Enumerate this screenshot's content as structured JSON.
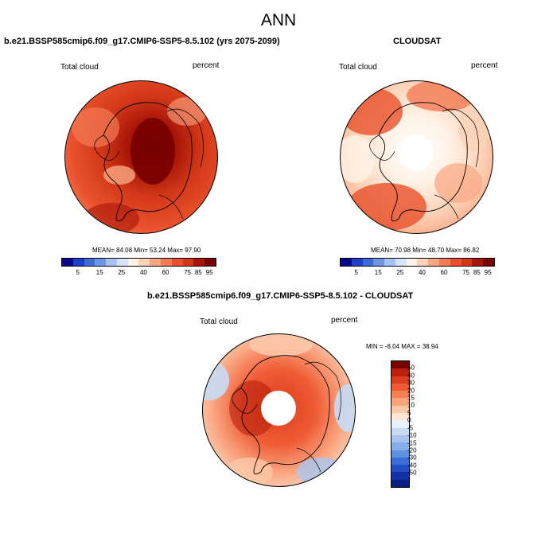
{
  "title": "ANN",
  "panels": [
    {
      "title": "b.e21.BSSP585cmip6.f09_g17.CMIP6-SSP5-8.5.102 (yrs 2075-2099)",
      "left_label": "Total cloud",
      "right_label": "percent",
      "stats": "MEAN=  84.08  Min=  53.24  Max=  97.90"
    },
    {
      "title": "CLOUDSAT",
      "left_label": "Total cloud",
      "right_label": "percent",
      "stats": "MEAN=  70.98  Min=  48.70  Max=  86.82"
    },
    {
      "title": "b.e21.BSSP585cmip6.f09_g17.CMIP6-SSP5-8.5.102 - CLOUDSAT",
      "left_label": "Total cloud",
      "right_label": "percent",
      "stats": "MIN = -8.04 MAX = 38.94"
    }
  ],
  "colorbar_abs": {
    "colors": [
      "#08088a",
      "#1f3fc8",
      "#3d6bd8",
      "#6d95e6",
      "#a6c2f0",
      "#d6e4fa",
      "#fff2e6",
      "#fcd3b8",
      "#f9a783",
      "#f47a55",
      "#e9502b",
      "#d23818",
      "#a81608",
      "#780000"
    ],
    "tick_labels": [
      "5",
      "15",
      "25",
      "40",
      "60",
      "75",
      "85",
      "95"
    ],
    "tick_edges": [
      1,
      3,
      5,
      7,
      9,
      11,
      12,
      13
    ]
  },
  "colorbar_diff": {
    "colors": [
      "#780000",
      "#b8200c",
      "#dc3d1c",
      "#ef5b34",
      "#f77f54",
      "#f9a47f",
      "#fcc8a8",
      "#fde6d4",
      "#e8f0fb",
      "#c8dcf5",
      "#a9c5ef",
      "#86aeea",
      "#5f8fe2",
      "#3c6ed6",
      "#234ec6",
      "#1233a8",
      "#081e82"
    ],
    "tick_labels": [
      "50",
      "40",
      "30",
      "20",
      "15",
      "10",
      "5",
      "0",
      "-5",
      "-10",
      "-15",
      "-20",
      "-30",
      "-40",
      "-50"
    ]
  }
}
